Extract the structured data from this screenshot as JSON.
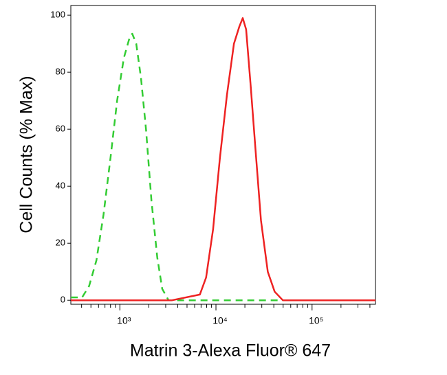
{
  "chart_data": {
    "type": "line",
    "xlabel": "Matrin 3-Alexa Fluor® 647",
    "ylabel": "Cell Counts (% Max)",
    "xscale": "log",
    "xlim": [
      309,
      457000
    ],
    "ylim": [
      -1.4,
      103.4
    ],
    "xticks": [
      {
        "value": 1000,
        "label": "10³"
      },
      {
        "value": 10000,
        "label": "10⁴"
      },
      {
        "value": 100000,
        "label": "10⁵"
      }
    ],
    "xminorticks": [
      400,
      500,
      600,
      700,
      800,
      900,
      2000,
      3000,
      4000,
      5000,
      6000,
      7000,
      8000,
      9000,
      20000,
      30000,
      40000,
      50000,
      60000,
      70000,
      80000,
      90000,
      200000,
      300000,
      400000
    ],
    "yticks": [
      0,
      20,
      40,
      60,
      80,
      100
    ],
    "series": [
      {
        "color": "#33cc33",
        "dash": true,
        "x": [
          309,
          405,
          479,
          570,
          676,
          800,
          937,
          1100,
          1260,
          1345,
          1480,
          1660,
          1870,
          2130,
          2450,
          2760,
          3210,
          457000
        ],
        "values": [
          1,
          1,
          5,
          14,
          30,
          50,
          70,
          85,
          92,
          93.5,
          90,
          78,
          60,
          35,
          15,
          4,
          0,
          0
        ]
      },
      {
        "color": "#ee2222",
        "dash": false,
        "x": [
          309,
          3490,
          6800,
          7900,
          9340,
          11000,
          13000,
          15400,
          17500,
          19000,
          20600,
          23000,
          25900,
          29400,
          34600,
          40800,
          49700,
          457000
        ],
        "values": [
          0,
          0,
          2,
          8,
          25,
          50,
          72,
          90,
          96,
          99,
          95,
          75,
          52,
          28,
          10,
          3,
          0,
          0
        ]
      }
    ]
  }
}
